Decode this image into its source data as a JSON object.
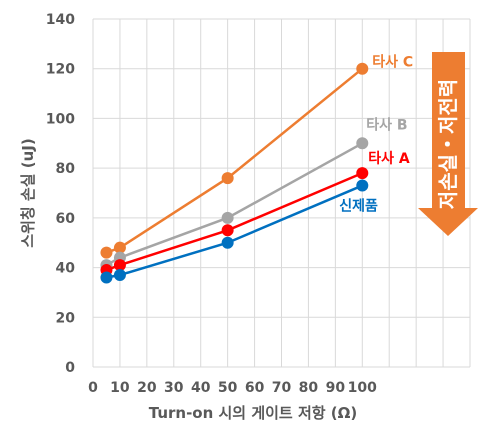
{
  "chart_data": {
    "type": "line",
    "xlabel": "Turn-on 시의 게이트 저항 (Ω)",
    "ylabel": "스위칭 손실 (uJ)",
    "xlim": [
      0,
      140
    ],
    "ylim": [
      0,
      140
    ],
    "x_ticks": [
      "0",
      "10",
      "20",
      "30",
      "40",
      "50",
      "60",
      "70",
      "80",
      "90",
      "100"
    ],
    "y_ticks": [
      "0",
      "20",
      "40",
      "60",
      "80",
      "100",
      "120",
      "140"
    ],
    "grid": true,
    "series": [
      {
        "name": "타사 C",
        "color": "#ED7D31",
        "x": [
          5,
          10,
          50,
          100
        ],
        "y": [
          46,
          48,
          76,
          120
        ]
      },
      {
        "name": "타사 B",
        "color": "#A5A5A5",
        "x": [
          5,
          10,
          50,
          100
        ],
        "y": [
          41,
          44,
          60,
          90
        ]
      },
      {
        "name": "타사 A",
        "color": "#FF0000",
        "x": [
          5,
          10,
          50,
          100
        ],
        "y": [
          39,
          41,
          55,
          78
        ]
      },
      {
        "name": "신제품",
        "color": "#0070C0",
        "x": [
          5,
          10,
          50,
          100
        ],
        "y": [
          36,
          37,
          50,
          73
        ]
      }
    ],
    "annotation": {
      "text": "저손실・저전력",
      "color": "#ED7D31"
    }
  }
}
